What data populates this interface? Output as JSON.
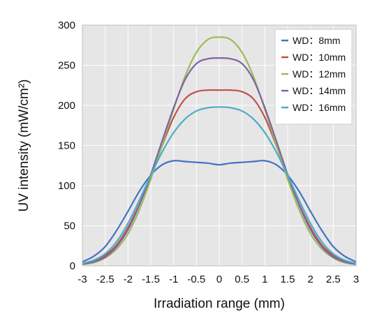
{
  "chart_data": {
    "type": "line",
    "title": "",
    "xlabel": "Irradiation range (mm)",
    "ylabel": "UV intensity (mW/cm²)",
    "xlim": [
      -3,
      3
    ],
    "ylim": [
      0,
      300
    ],
    "xticks": [
      "-3",
      "-2.5",
      "-2",
      "-1.5",
      "-1",
      "-0.5",
      "0",
      "0.5",
      "1",
      "1.5",
      "2",
      "2.5",
      "3"
    ],
    "xtick_values": [
      -3,
      -2.5,
      -2,
      -1.5,
      -1,
      -0.5,
      0,
      0.5,
      1,
      1.5,
      2,
      2.5,
      3
    ],
    "yticks": [
      "0",
      "50",
      "100",
      "150",
      "200",
      "250",
      "300"
    ],
    "ytick_values": [
      0,
      50,
      100,
      150,
      200,
      250,
      300
    ],
    "grid": true,
    "legend_position": "top-right",
    "x": [
      -3,
      -2.75,
      -2.5,
      -2.25,
      -2,
      -1.75,
      -1.5,
      -1.25,
      -1,
      -0.75,
      -0.5,
      -0.25,
      0,
      0.25,
      0.5,
      0.75,
      1,
      1.25,
      1.5,
      1.75,
      2,
      2.25,
      2.5,
      2.75,
      3
    ],
    "series": [
      {
        "name": "WD：8mm",
        "color": "#4472c4",
        "values": [
          5,
          12,
          24,
          44,
          68,
          93,
          113,
          126,
          131,
          130,
          129,
          128,
          126,
          128,
          129,
          130,
          131,
          126,
          113,
          93,
          68,
          44,
          24,
          12,
          5
        ]
      },
      {
        "name": "WD：10mm",
        "color": "#c0504d",
        "values": [
          3,
          6,
          13,
          26,
          48,
          77,
          111,
          150,
          185,
          208,
          217,
          219,
          219,
          219,
          217,
          208,
          185,
          150,
          111,
          77,
          48,
          26,
          13,
          6,
          3
        ]
      },
      {
        "name": "WD：12mm",
        "color": "#9bbb59",
        "values": [
          2,
          4,
          10,
          21,
          40,
          70,
          108,
          151,
          195,
          236,
          266,
          282,
          285,
          282,
          266,
          236,
          195,
          151,
          108,
          70,
          40,
          21,
          10,
          4,
          2
        ]
      },
      {
        "name": "WD：14mm",
        "color": "#8064a2",
        "values": [
          2,
          5,
          11,
          24,
          45,
          76,
          114,
          156,
          197,
          232,
          252,
          258,
          259,
          258,
          252,
          232,
          197,
          156,
          114,
          76,
          45,
          24,
          11,
          5,
          2
        ]
      },
      {
        "name": "WD：16mm",
        "color": "#4bacc6",
        "values": [
          3,
          7,
          15,
          30,
          53,
          82,
          113,
          142,
          166,
          183,
          193,
          197,
          198,
          197,
          193,
          183,
          166,
          142,
          113,
          82,
          53,
          30,
          15,
          7,
          3
        ]
      }
    ]
  }
}
